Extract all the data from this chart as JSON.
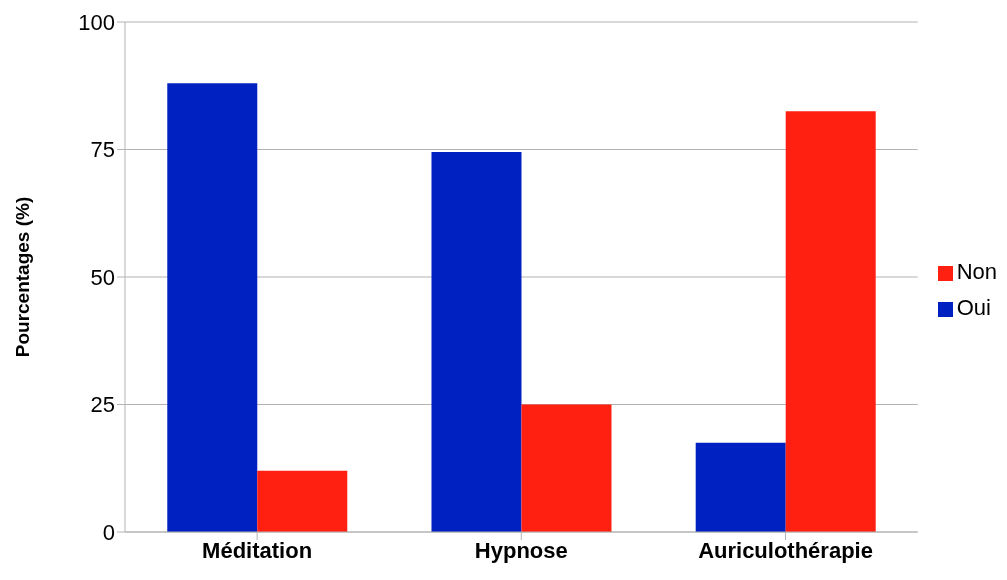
{
  "chart_data": {
    "type": "bar",
    "ylabel": "Pourcentages (%)",
    "categories": [
      "Méditation",
      "Hypnose",
      "Auriculothérapie"
    ],
    "series": [
      {
        "name": "Oui",
        "color": "#0021c1",
        "values": [
          88,
          74.5,
          17.5
        ]
      },
      {
        "name": "Non",
        "color": "#ff2011",
        "values": [
          12,
          25,
          82.5
        ]
      }
    ],
    "ylim": [
      0,
      100
    ],
    "yticks": [
      0,
      25,
      50,
      75,
      100
    ],
    "grid": "y",
    "legend": "right"
  }
}
